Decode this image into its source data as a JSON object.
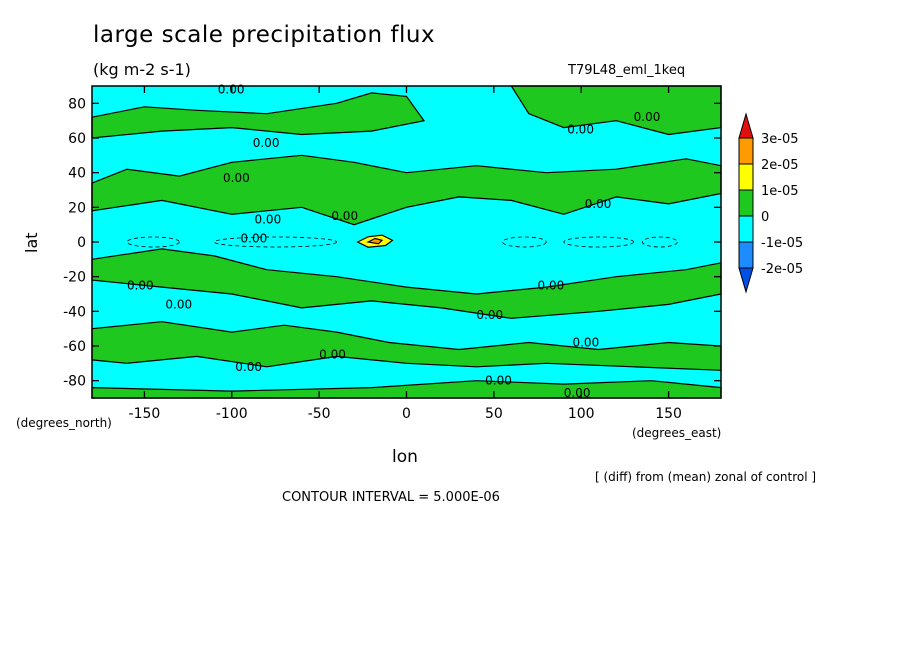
{
  "header": {
    "title": "large scale precipitation flux",
    "units": "(kg m-2 s-1)",
    "run_name": "T79L48_eml_1keq"
  },
  "axes": {
    "ylabel": "lat",
    "yunit": "(degrees_north)",
    "xlabel": "lon",
    "xunit": "(degrees_east)"
  },
  "footer": {
    "note": "[ (diff) from (mean) zonal of control ]",
    "contour_interval": "CONTOUR INTERVAL = 5.000E-06"
  },
  "chart_data": {
    "type": "heatmap",
    "title": "large scale precipitation flux",
    "subtitle": "(kg m-2 s-1)",
    "xlabel": "lon",
    "ylabel": "lat",
    "xlim": [
      -180,
      180
    ],
    "ylim": [
      -90,
      90
    ],
    "x_ticks": [
      -150,
      -100,
      -50,
      0,
      50,
      100,
      150
    ],
    "x_tick_labels": [
      "-150",
      "-100",
      "-50",
      "0",
      "50",
      "100",
      "150"
    ],
    "y_ticks": [
      -80,
      -60,
      -40,
      -20,
      0,
      20,
      40,
      60,
      80
    ],
    "y_tick_labels": [
      "-80",
      "-60",
      "-40",
      "-20",
      "0",
      "20",
      "40",
      "60",
      "80"
    ],
    "contour_interval": 5e-06,
    "contour_labels": [
      "0.00"
    ],
    "colorbar": {
      "levels": [
        "3e-05",
        "2e-05",
        "1e-05",
        "0",
        "-1e-05",
        "-2e-05"
      ],
      "colors": [
        "#e01010",
        "#ff9a00",
        "#ffff00",
        "#1ec81e",
        "#00ffff",
        "#1e8cff",
        "#0050e6"
      ]
    },
    "regions_lon_lat": [
      {
        "name": "nh-mid-lat-band-1",
        "value_class": "0 to 1e-05",
        "poly": [
          [
            -180,
            72
          ],
          [
            -150,
            78
          ],
          [
            -120,
            76
          ],
          [
            -80,
            74
          ],
          [
            -40,
            80
          ],
          [
            -20,
            86
          ],
          [
            0,
            84
          ],
          [
            10,
            70
          ],
          [
            -20,
            64
          ],
          [
            -60,
            62
          ],
          [
            -100,
            66
          ],
          [
            -140,
            64
          ],
          [
            -180,
            60
          ]
        ]
      },
      {
        "name": "nh-mid-lat-band-2",
        "value_class": "0 to 1e-05",
        "poly": [
          [
            -180,
            34
          ],
          [
            -160,
            42
          ],
          [
            -130,
            38
          ],
          [
            -100,
            46
          ],
          [
            -60,
            50
          ],
          [
            -30,
            46
          ],
          [
            0,
            40
          ],
          [
            40,
            44
          ],
          [
            80,
            40
          ],
          [
            120,
            42
          ],
          [
            160,
            48
          ],
          [
            180,
            44
          ],
          [
            180,
            28
          ],
          [
            150,
            22
          ],
          [
            120,
            26
          ],
          [
            90,
            16
          ],
          [
            60,
            24
          ],
          [
            30,
            26
          ],
          [
            0,
            20
          ],
          [
            -30,
            10
          ],
          [
            -60,
            20
          ],
          [
            -100,
            16
          ],
          [
            -140,
            24
          ],
          [
            -180,
            18
          ]
        ]
      },
      {
        "name": "nh-polar",
        "value_class": "0 to 1e-05",
        "poly": [
          [
            60,
            90
          ],
          [
            180,
            90
          ],
          [
            180,
            66
          ],
          [
            150,
            62
          ],
          [
            120,
            70
          ],
          [
            90,
            66
          ],
          [
            70,
            74
          ]
        ]
      },
      {
        "name": "equatorial-maximum",
        "value_class": "1e-05 to 2e-05",
        "poly": [
          [
            -28,
            0
          ],
          [
            -22,
            3
          ],
          [
            -14,
            4
          ],
          [
            -8,
            1
          ],
          [
            -12,
            -2
          ],
          [
            -22,
            -3
          ]
        ]
      },
      {
        "name": "equatorial-maximum-core",
        "value_class": "2e-05 to 3e-05",
        "poly": [
          [
            -22,
            0
          ],
          [
            -18,
            2
          ],
          [
            -14,
            1
          ],
          [
            -16,
            -1
          ]
        ]
      },
      {
        "name": "sh-subtropics",
        "value_class": "0 to 1e-05",
        "poly": [
          [
            -180,
            -10
          ],
          [
            -140,
            -4
          ],
          [
            -110,
            -8
          ],
          [
            -80,
            -16
          ],
          [
            -40,
            -20
          ],
          [
            0,
            -26
          ],
          [
            40,
            -30
          ],
          [
            80,
            -26
          ],
          [
            120,
            -20
          ],
          [
            160,
            -16
          ],
          [
            180,
            -12
          ],
          [
            180,
            -30
          ],
          [
            150,
            -36
          ],
          [
            110,
            -40
          ],
          [
            60,
            -44
          ],
          [
            20,
            -38
          ],
          [
            -20,
            -34
          ],
          [
            -60,
            -38
          ],
          [
            -100,
            -30
          ],
          [
            -140,
            -26
          ],
          [
            -180,
            -22
          ]
        ]
      },
      {
        "name": "sh-mid-lat-band",
        "value_class": "0 to 1e-05",
        "poly": [
          [
            -180,
            -50
          ],
          [
            -140,
            -46
          ],
          [
            -100,
            -52
          ],
          [
            -70,
            -48
          ],
          [
            -40,
            -52
          ],
          [
            -10,
            -58
          ],
          [
            30,
            -62
          ],
          [
            70,
            -58
          ],
          [
            110,
            -62
          ],
          [
            150,
            -58
          ],
          [
            180,
            -60
          ],
          [
            180,
            -74
          ],
          [
            130,
            -72
          ],
          [
            80,
            -70
          ],
          [
            40,
            -72
          ],
          [
            0,
            -70
          ],
          [
            -40,
            -66
          ],
          [
            -80,
            -72
          ],
          [
            -120,
            -66
          ],
          [
            -160,
            -70
          ],
          [
            -180,
            -68
          ]
        ]
      },
      {
        "name": "sh-polar",
        "value_class": "0 to 1e-05",
        "poly": [
          [
            -180,
            -84
          ],
          [
            -100,
            -86
          ],
          [
            -20,
            -84
          ],
          [
            40,
            -80
          ],
          [
            90,
            -82
          ],
          [
            140,
            -80
          ],
          [
            180,
            -84
          ],
          [
            180,
            -90
          ],
          [
            -180,
            -90
          ]
        ]
      }
    ]
  }
}
